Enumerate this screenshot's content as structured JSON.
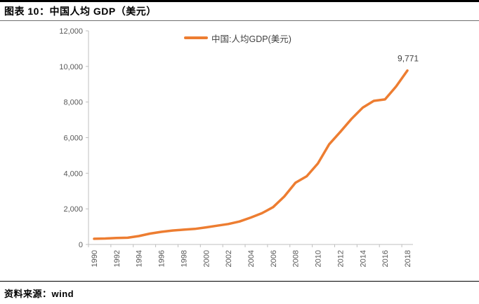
{
  "header": {
    "title": "图表 10：中国人均 GDP（美元）"
  },
  "source": {
    "text": "资料来源：wind"
  },
  "colors": {
    "line": "#ED7D31",
    "axis": "#BFBFBF",
    "tick_label": "#595959",
    "data_label": "#404040"
  },
  "chart_data": {
    "type": "line",
    "title": "图表 10：中国人均 GDP（美元）",
    "xlabel": "",
    "ylabel": "",
    "ylim": [
      0,
      12000
    ],
    "grid": "off",
    "legend_position": "top-center",
    "x": [
      1990,
      1991,
      1992,
      1993,
      1994,
      1995,
      1996,
      1997,
      1998,
      1999,
      2000,
      2001,
      2002,
      2003,
      2004,
      2005,
      2006,
      2007,
      2008,
      2009,
      2010,
      2011,
      2012,
      2013,
      2014,
      2015,
      2016,
      2017,
      2018
    ],
    "series": [
      {
        "name": "中国:人均GDP(美元)",
        "color": "#ED7D31",
        "values": [
          318,
          333,
          366,
          377,
          473,
          610,
          709,
          782,
          829,
          873,
          959,
          1053,
          1149,
          1289,
          1509,
          1753,
          2099,
          2694,
          3468,
          3832,
          4550,
          5618,
          6317,
          7051,
          7679,
          8067,
          8148,
          8879,
          9771
        ]
      }
    ],
    "y_ticks": [
      0,
      2000,
      4000,
      6000,
      8000,
      10000,
      12000
    ],
    "y_tick_labels": [
      "0",
      "2,000",
      "4,000",
      "6,000",
      "8,000",
      "10,000",
      "12,000"
    ],
    "x_tick_labels": [
      "1990",
      "1992",
      "1994",
      "1996",
      "1998",
      "2000",
      "2002",
      "2004",
      "2006",
      "2008",
      "2010",
      "2012",
      "2014",
      "2016",
      "2018"
    ],
    "annotation": {
      "text": "9,771",
      "x": 2018,
      "y": 9771
    }
  }
}
